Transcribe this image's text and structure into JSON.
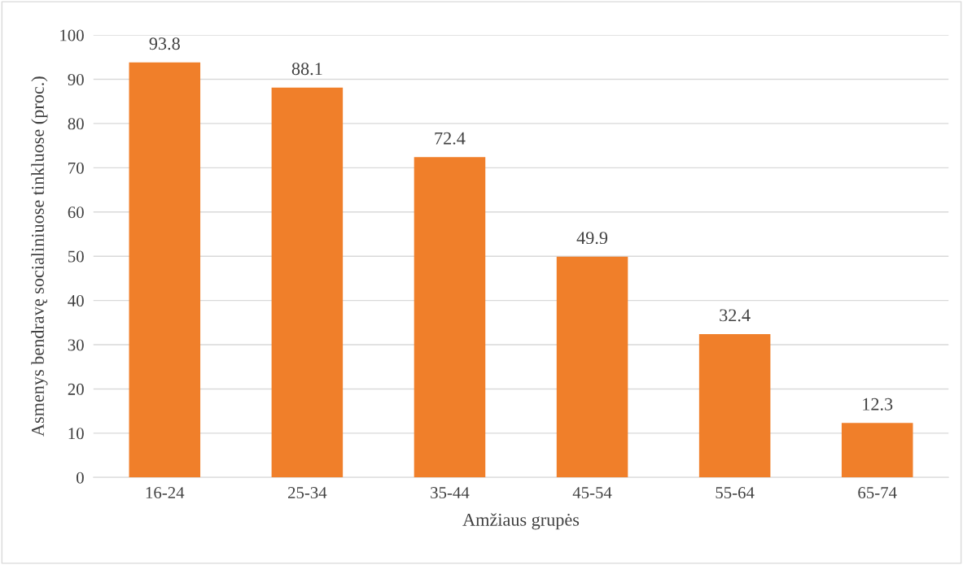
{
  "chart_data": {
    "type": "bar",
    "xlabel": "Amžiaus grupės",
    "ylabel": "Asmenys bendravę socialiniuose tinkluose (proc.)",
    "categories": [
      "16-24",
      "25-34",
      "35-44",
      "45-54",
      "55-64",
      "65-74"
    ],
    "values": [
      93.8,
      88.1,
      72.4,
      49.9,
      32.4,
      12.3
    ],
    "color": "#f07f2a",
    "ylim": [
      0,
      100
    ],
    "yticks": [
      0,
      10,
      20,
      30,
      40,
      50,
      60,
      70,
      80,
      90,
      100
    ],
    "grid": "y",
    "data_labels": true
  }
}
